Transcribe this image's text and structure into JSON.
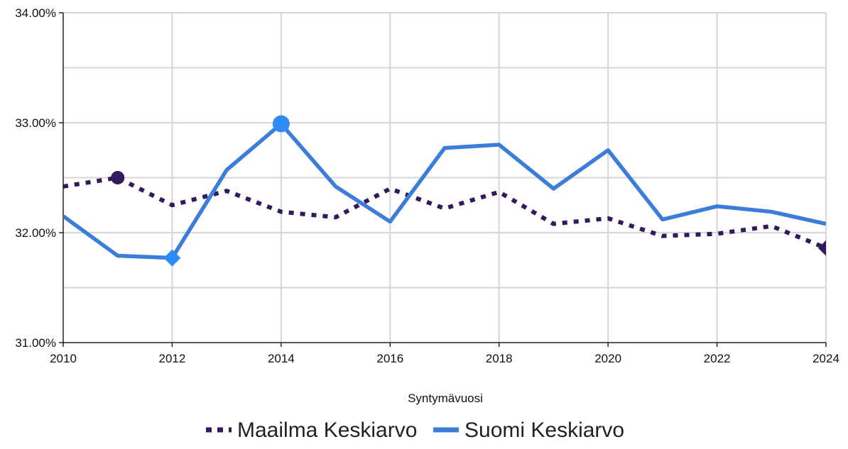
{
  "chart_data": {
    "type": "line",
    "xlabel": "Syntymävuosi",
    "ylabel": "",
    "x": [
      2010,
      2011,
      2012,
      2013,
      2014,
      2015,
      2016,
      2017,
      2018,
      2019,
      2020,
      2021,
      2022,
      2023,
      2024
    ],
    "xlim": [
      2010,
      2024
    ],
    "xticks": [
      "2010",
      "2012",
      "2014",
      "2016",
      "2018",
      "2020",
      "2022",
      "2024"
    ],
    "ylim": [
      31.0,
      34.0
    ],
    "yticks": [
      "31.00%",
      "32.00%",
      "33.00%",
      "34.00%"
    ],
    "grid": true,
    "legend_position": "bottom",
    "series": [
      {
        "name": "Maailma Keskiarvo",
        "color": "#33195e",
        "style": "dotted",
        "values": [
          32.42,
          32.5,
          32.25,
          32.38,
          32.19,
          32.14,
          32.4,
          32.22,
          32.37,
          32.08,
          32.13,
          31.97,
          31.99,
          32.06,
          31.86
        ],
        "markers": [
          {
            "index": 1,
            "shape": "circle"
          },
          {
            "index": 14,
            "shape": "diamond"
          }
        ]
      },
      {
        "name": "Suomi Keskiarvo",
        "color": "#3b7dd8",
        "style": "solid",
        "values": [
          32.15,
          31.79,
          31.77,
          32.57,
          32.99,
          32.42,
          32.1,
          32.77,
          32.8,
          32.4,
          32.75,
          32.12,
          32.24,
          32.19,
          32.08
        ],
        "markers": [
          {
            "index": 2,
            "shape": "diamond",
            "color": "#2f8bf5"
          },
          {
            "index": 4,
            "shape": "circle",
            "color": "#2f8bf5"
          }
        ]
      }
    ]
  }
}
